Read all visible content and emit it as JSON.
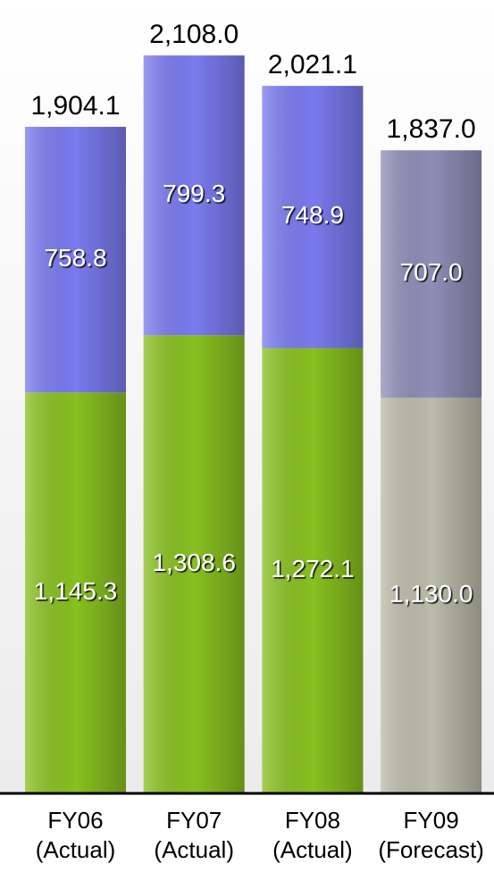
{
  "chart_data": {
    "type": "stacked-bar",
    "categories": [
      "FY06",
      "FY07",
      "FY08",
      "FY09"
    ],
    "category_notes": [
      "(Actual)",
      "(Actual)",
      "(Actual)",
      "(Forecast)"
    ],
    "series": [
      {
        "values": [
          1145.3,
          1308.6,
          1272.1,
          1130.0
        ],
        "value_labels": [
          "1,145.3",
          "1,308.6",
          "1,272.1",
          "1,130.0"
        ],
        "color": "#88c020",
        "colors": [
          "#88c020",
          "#88c020",
          "#88c020",
          "#bcbcaa"
        ]
      },
      {
        "values": [
          758.8,
          799.3,
          748.9,
          707.0
        ],
        "value_labels": [
          "758.8",
          "799.3",
          "748.9",
          "707.0"
        ],
        "color": "#7a7aee",
        "colors": [
          "#7a7aee",
          "#7a7aee",
          "#7a7aee",
          "#8e8eb8"
        ]
      }
    ],
    "totals": [
      1904.1,
      2108.0,
      2021.1,
      1837.0
    ],
    "total_labels": [
      "1,904.1",
      "2,108.0",
      "2,021.1",
      "1,837.0"
    ],
    "ylim": [
      0,
      2200
    ]
  }
}
